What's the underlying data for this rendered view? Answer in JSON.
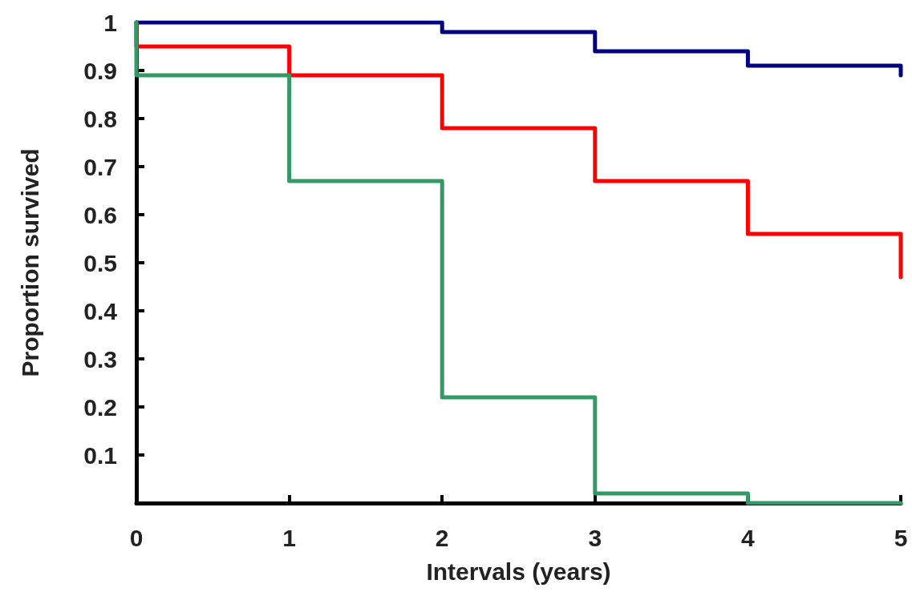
{
  "chart_data": {
    "type": "step",
    "xlabel": "Intervals (years)",
    "ylabel": "Proportion survived",
    "xlim": [
      0,
      5
    ],
    "xticks": [
      0,
      1,
      2,
      3,
      4,
      5
    ],
    "ylim": [
      0,
      1
    ],
    "yticks": [
      {
        "value": 0,
        "label": null
      },
      0.1,
      0.2,
      0.3,
      0.4,
      0.5,
      0.6,
      0.7,
      0.8,
      0.9,
      1
    ],
    "grid": false,
    "marker": "none",
    "line_style": "solid",
    "series": [
      {
        "color": "#000080",
        "x": [
          0,
          2,
          3,
          4,
          5
        ],
        "values": [
          1,
          0.98,
          0.94,
          0.91,
          0.89
        ]
      },
      {
        "color": "#ff0000",
        "x": [
          0,
          0,
          1,
          2,
          3,
          4,
          5
        ],
        "values": [
          1,
          0.95,
          0.89,
          0.78,
          0.67,
          0.56,
          0.47
        ]
      },
      {
        "color": "#339966",
        "x": [
          0,
          0,
          1,
          2,
          3,
          4,
          5
        ],
        "values": [
          1,
          0.89,
          0.67,
          0.22,
          0.02,
          0,
          0
        ]
      }
    ]
  }
}
